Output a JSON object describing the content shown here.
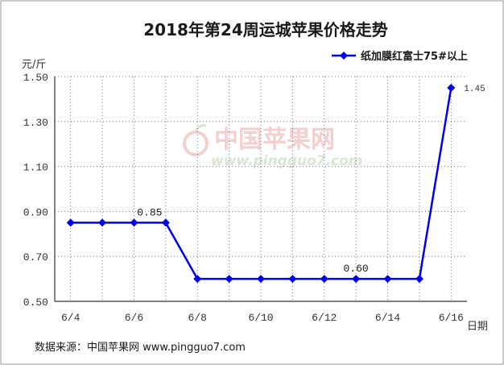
{
  "chart_data": {
    "type": "line",
    "title": "2018年第24周运城苹果价格走势",
    "ylabel": "元/斤",
    "xlabel": "日期",
    "ylim": [
      0.5,
      1.5
    ],
    "yticks": [
      "0.50",
      "0.70",
      "0.90",
      "1.10",
      "1.30",
      "1.50"
    ],
    "xticks": [
      "6/4",
      "6/6",
      "6/8",
      "6/10",
      "6/12",
      "6/14",
      "6/16"
    ],
    "grid": true,
    "legend_position": "top-right",
    "series": [
      {
        "name": "纸加膜红富士75#以上",
        "color": "#0000ee",
        "x": [
          "6/4",
          "6/5",
          "6/6",
          "6/7",
          "6/8",
          "6/9",
          "6/10",
          "6/11",
          "6/12",
          "6/13",
          "6/14",
          "6/15",
          "6/16"
        ],
        "values": [
          0.85,
          0.85,
          0.85,
          0.85,
          0.6,
          0.6,
          0.6,
          0.6,
          0.6,
          0.6,
          0.6,
          0.6,
          1.45
        ]
      }
    ],
    "annotations": [
      {
        "x": "6/7",
        "text": "0.85"
      },
      {
        "x": "6/13",
        "text": "0.60"
      },
      {
        "x": "6/16",
        "text": "1.45"
      }
    ]
  },
  "watermark": {
    "cn": "中国苹果网",
    "en": "www.pingguo7.com",
    "color_cn": "#f3d0d0",
    "color_en": "#d9e6d3"
  },
  "source": "数据来源：中国苹果网 www.pingguo7.com"
}
